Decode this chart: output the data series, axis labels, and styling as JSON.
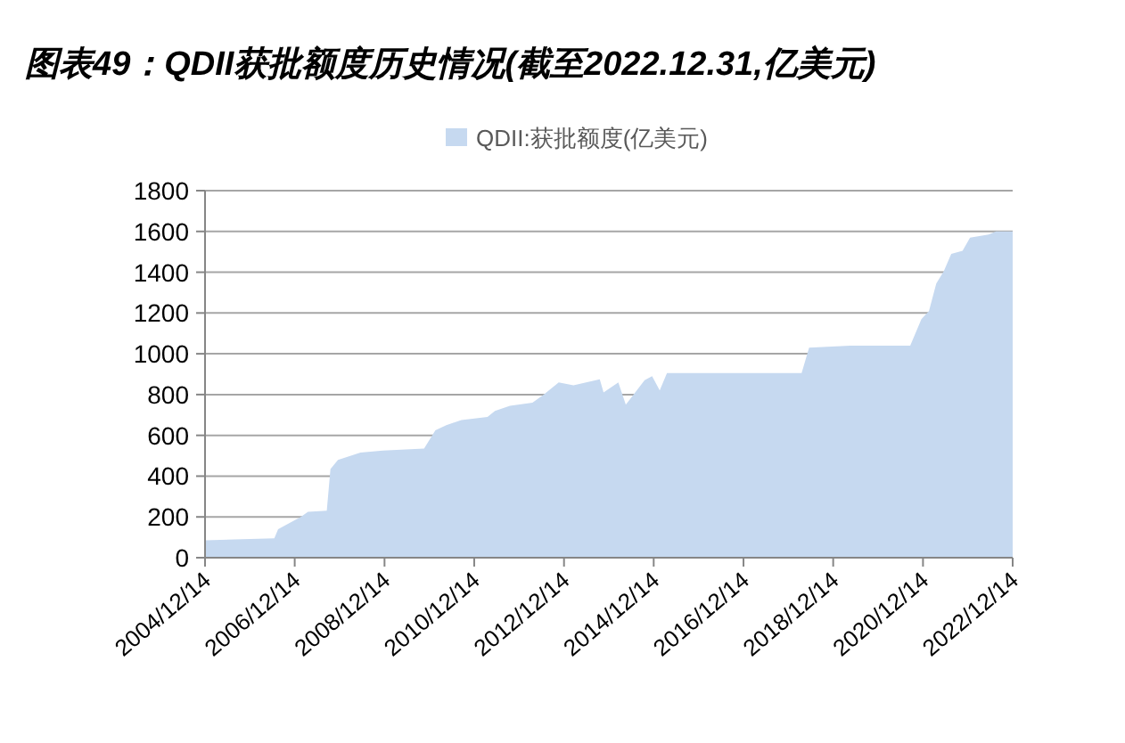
{
  "chart_data": {
    "type": "area",
    "title": "图表49：QDII获批额度历史情况(截至2022.12.31,亿美元)",
    "x": [
      "2004-12-14",
      "2006-07",
      "2006-08",
      "2007-02",
      "2007-04",
      "2007-09",
      "2007-10",
      "2007-12",
      "2008-06",
      "2008-12",
      "2009-11",
      "2010-02",
      "2010-05",
      "2010-09",
      "2011-04",
      "2011-06",
      "2011-10",
      "2012-04",
      "2012-07",
      "2012-11",
      "2013-03",
      "2013-10",
      "2013-11",
      "2014-03",
      "2014-05",
      "2014-10",
      "2014-12",
      "2015-02",
      "2015-04",
      "2018-04",
      "2018-06",
      "2019-05",
      "2020-09",
      "2020-12",
      "2021-02",
      "2021-04",
      "2021-06",
      "2021-08",
      "2021-11",
      "2022-01",
      "2022-06",
      "2022-08",
      "2022-12-14"
    ],
    "series": [
      {
        "name": "QDII:获批额度(亿美元)",
        "color": "#c6d9f0",
        "values": [
          85,
          95,
          140,
          200,
          225,
          230,
          435,
          480,
          515,
          525,
          535,
          625,
          650,
          675,
          690,
          720,
          745,
          760,
          800,
          860,
          845,
          875,
          810,
          860,
          750,
          870,
          890,
          820,
          905,
          905,
          1030,
          1040,
          1040,
          1170,
          1210,
          1345,
          1405,
          1490,
          1505,
          1570,
          1585,
          1600,
          1600
        ]
      }
    ],
    "xlim": [
      "2004-12-14",
      "2022-12-14"
    ],
    "xticks": [
      {
        "value": "2004-12-14",
        "label": "2004/12/14"
      },
      {
        "value": "2006-12-14",
        "label": "2006/12/14"
      },
      {
        "value": "2008-12-14",
        "label": "2008/12/14"
      },
      {
        "value": "2010-12-14",
        "label": "2010/12/14"
      },
      {
        "value": "2012-12-14",
        "label": "2012/12/14"
      },
      {
        "value": "2014-12-14",
        "label": "2014/12/14"
      },
      {
        "value": "2016-12-14",
        "label": "2016/12/14"
      },
      {
        "value": "2018-12-14",
        "label": "2018/12/14"
      },
      {
        "value": "2020-12-14",
        "label": "2020/12/14"
      },
      {
        "value": "2022-12-14",
        "label": "2022/12/14"
      }
    ],
    "ylim": [
      0,
      1800
    ],
    "yticks": [
      0,
      200,
      400,
      600,
      800,
      1000,
      1200,
      1400,
      1600,
      1800
    ],
    "grid": "y",
    "legend": "top"
  }
}
